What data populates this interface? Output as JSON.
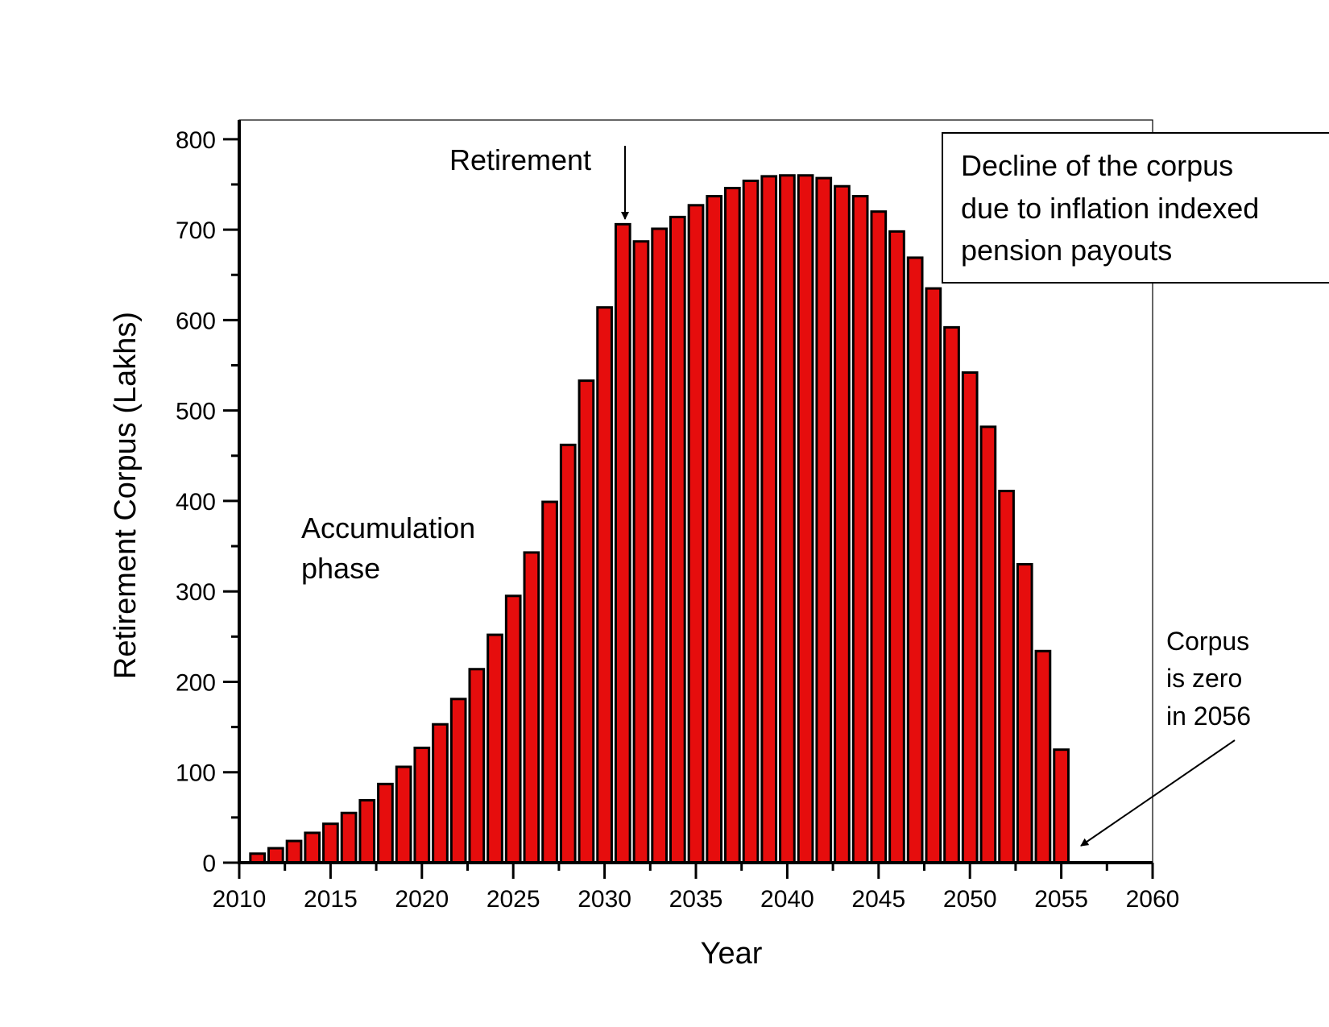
{
  "chart_data": {
    "type": "bar",
    "title": "",
    "xlabel": "Year",
    "ylabel": "Retirement Corpus (Lakhs)",
    "xlim": [
      2010,
      2060
    ],
    "ylim": [
      0,
      820
    ],
    "xticks": [
      2010,
      2015,
      2020,
      2025,
      2030,
      2035,
      2040,
      2045,
      2050,
      2055,
      2060
    ],
    "yticks": [
      0,
      100,
      200,
      300,
      400,
      500,
      600,
      700,
      800
    ],
    "grid": false,
    "bar_color": "#e60d0d",
    "bar_edge_color": "#000000",
    "x": [
      2011,
      2012,
      2013,
      2014,
      2015,
      2016,
      2017,
      2018,
      2019,
      2020,
      2021,
      2022,
      2023,
      2024,
      2025,
      2026,
      2027,
      2028,
      2029,
      2030,
      2031,
      2032,
      2033,
      2034,
      2035,
      2036,
      2037,
      2038,
      2039,
      2040,
      2041,
      2042,
      2043,
      2044,
      2045,
      2046,
      2047,
      2048,
      2049,
      2050,
      2051,
      2052,
      2053,
      2054,
      2055
    ],
    "values": [
      10,
      16,
      24,
      33,
      43,
      55,
      69,
      87,
      106,
      127,
      153,
      181,
      214,
      252,
      295,
      343,
      399,
      462,
      533,
      614,
      706,
      687,
      701,
      714,
      727,
      737,
      746,
      754,
      759,
      760,
      760,
      757,
      748,
      737,
      720,
      698,
      669,
      635,
      592,
      542,
      482,
      411,
      330,
      234,
      125
    ],
    "annotations": {
      "retirement": "Retirement",
      "accumulation_line1": "Accumulation",
      "accumulation_line2": "phase",
      "decline_line1": "Decline of the corpus",
      "decline_line2": "due to inflation indexed",
      "decline_line3": "pension payouts",
      "zero_line1": "Corpus",
      "zero_line2": "is zero",
      "zero_line3": "in 2056"
    }
  }
}
